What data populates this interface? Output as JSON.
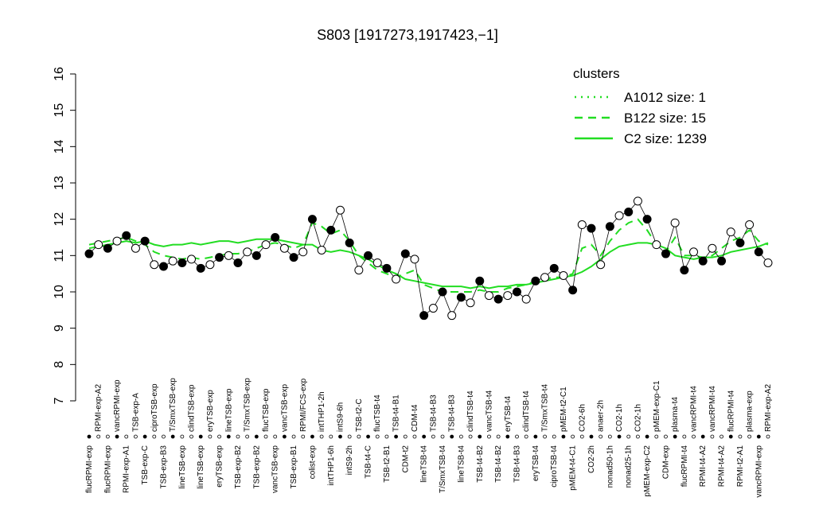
{
  "chart_data": {
    "type": "line",
    "title": "S803 [1917273,1917423,−1]",
    "ylim": [
      7,
      16
    ],
    "yticks": [
      7,
      8,
      9,
      10,
      11,
      12,
      13,
      14,
      15,
      16
    ],
    "legend_title": "clusters",
    "legend_position": "top-right",
    "point_color": "#000000",
    "categories": [
      "flucRPMI-exp",
      "RPMI-exp-A2",
      "flucRPMI-exp",
      "vancRPMI-exp",
      "RPMI-exp-A1",
      "TSB-exp-A",
      "TSB-exp-C",
      "ciproTSB-exp",
      "TSB-exp-B3",
      "T/SmxTSB-exp",
      "lineTSB-exp",
      "clindTSB-exp",
      "lineTSB-exp",
      "eryTSB-exp",
      "eryTSB-exp",
      "lineTSB-exp",
      "TSB-exp-B2",
      "T/SmxTSB-exp",
      "TSB-exp-B2",
      "flucTSB-exp",
      "vancTSB-exp",
      "vancTSB-exp",
      "TSB-exp-B1",
      "RPMI/FCS-exp",
      "colist-exp",
      "intTHP1-2h",
      "intTHP1-6h",
      "intS9-6h",
      "intS9-2h",
      "TSB-t2-C",
      "TSB-t4-C",
      "flucTSB-t4",
      "TSB-t2-B1",
      "TSB-t4-B1",
      "CDM-t2",
      "CDM-t4",
      "lineTSB-t4",
      "TSB-t4-B3",
      "T/SmxTSB-t4",
      "TSB-t4-B3",
      "lineTSB-t4",
      "clindTSB-t4",
      "TSB-t4-B2",
      "vancTSB-t4",
      "TSB-t4-B2",
      "eryTSB-t4",
      "TSB-t4-B3",
      "clindTSB-t4",
      "eryTSB-t4",
      "T/SmxTSB-t4",
      "ciproTSB-t4",
      "pMEM-t2-C1",
      "pMEM-t4-C1",
      "CO2-6h",
      "CO2-2h",
      "anaer-2h",
      "nonad50-1h",
      "CO2-1h",
      "nonad25-1h",
      "CO2-1h",
      "pMEM-exp-C2",
      "pMEM-exp-C1",
      "CDM-exp",
      "plasma-t4",
      "flucRPMI-t4",
      "vancRPMI-t4",
      "RPMI-t4-A2",
      "vancRPMI-t4",
      "RPMI-t4-A2",
      "flucRPMI-t4",
      "RPMI-t2-A1",
      "plasma-exp",
      "vancRPMI-exp",
      "RPMI-exp-A2"
    ],
    "values": [
      11.05,
      11.3,
      11.2,
      11.4,
      11.55,
      11.2,
      11.4,
      10.75,
      10.7,
      10.85,
      10.8,
      10.9,
      10.65,
      10.75,
      10.95,
      11.0,
      10.8,
      11.1,
      11.0,
      11.3,
      11.5,
      11.2,
      10.95,
      11.1,
      12.0,
      11.15,
      11.7,
      12.25,
      11.35,
      10.6,
      11.0,
      10.8,
      10.65,
      10.35,
      11.05,
      10.9,
      9.35,
      9.55,
      10.0,
      9.35,
      9.85,
      9.7,
      10.3,
      9.9,
      9.8,
      9.9,
      10.0,
      9.8,
      10.3,
      10.4,
      10.65,
      10.45,
      10.05,
      11.85,
      11.75,
      10.75,
      11.8,
      12.1,
      12.2,
      12.5,
      12.0,
      11.3,
      11.05,
      11.9,
      10.6,
      11.1,
      10.85,
      11.2,
      10.85,
      11.65,
      11.35,
      11.85,
      11.1,
      10.8
    ],
    "series": [
      {
        "name": "A1012 size: 1",
        "color": "#22dd22",
        "dash": "dotted",
        "values": [
          null,
          null,
          null,
          null,
          null,
          null,
          null,
          null,
          null,
          null,
          null,
          null,
          null,
          null,
          null,
          null,
          null,
          null,
          null,
          null,
          null,
          null,
          null,
          null,
          null,
          null,
          null,
          null,
          null,
          null,
          null,
          null,
          null,
          null,
          null,
          null,
          null,
          null,
          null,
          null,
          null,
          null,
          null,
          null,
          null,
          null,
          null,
          null,
          null,
          null,
          null,
          null,
          null,
          null,
          null,
          null,
          null,
          null,
          null,
          null,
          null,
          null,
          null,
          null,
          null,
          null,
          null,
          null,
          null,
          null,
          null,
          null,
          null,
          null
        ]
      },
      {
        "name": "B122 size: 15",
        "color": "#22dd22",
        "dash": "dashed",
        "values": [
          11.3,
          11.35,
          11.4,
          11.45,
          11.5,
          11.4,
          11.3,
          11.1,
          11.0,
          10.95,
          10.9,
          10.95,
          10.9,
          10.95,
          11.0,
          11.05,
          11.05,
          11.1,
          11.2,
          11.3,
          11.35,
          11.3,
          11.2,
          11.3,
          11.9,
          11.8,
          11.6,
          11.7,
          11.4,
          11.0,
          10.8,
          10.6,
          10.5,
          10.4,
          10.5,
          10.6,
          10.2,
          10.1,
          10.0,
          10.0,
          10.0,
          10.0,
          10.05,
          10.0,
          10.0,
          10.1,
          10.15,
          10.2,
          10.3,
          10.35,
          10.4,
          10.4,
          10.5,
          11.2,
          11.3,
          11.0,
          11.4,
          11.7,
          11.9,
          12.0,
          11.7,
          11.3,
          11.1,
          11.5,
          11.0,
          11.0,
          10.95,
          11.0,
          11.2,
          11.4,
          11.5,
          11.7,
          11.4,
          11.3
        ]
      },
      {
        "name": "C2 size: 1239",
        "color": "#22dd22",
        "dash": "solid",
        "values": [
          11.2,
          11.25,
          11.3,
          11.35,
          11.4,
          11.35,
          11.4,
          11.3,
          11.25,
          11.3,
          11.3,
          11.35,
          11.3,
          11.35,
          11.4,
          11.4,
          11.35,
          11.4,
          11.45,
          11.45,
          11.45,
          11.4,
          11.35,
          11.3,
          11.3,
          11.15,
          11.1,
          11.15,
          11.1,
          11.0,
          10.9,
          10.75,
          10.6,
          10.5,
          10.35,
          10.3,
          10.25,
          10.2,
          10.15,
          10.15,
          10.15,
          10.1,
          10.15,
          10.1,
          10.15,
          10.15,
          10.2,
          10.2,
          10.25,
          10.3,
          10.35,
          10.4,
          10.45,
          10.55,
          10.7,
          10.9,
          11.1,
          11.25,
          11.3,
          11.35,
          11.35,
          11.3,
          11.2,
          11.0,
          10.95,
          10.9,
          10.95,
          10.95,
          11.0,
          11.1,
          11.15,
          11.2,
          11.25,
          11.35
        ]
      }
    ]
  }
}
